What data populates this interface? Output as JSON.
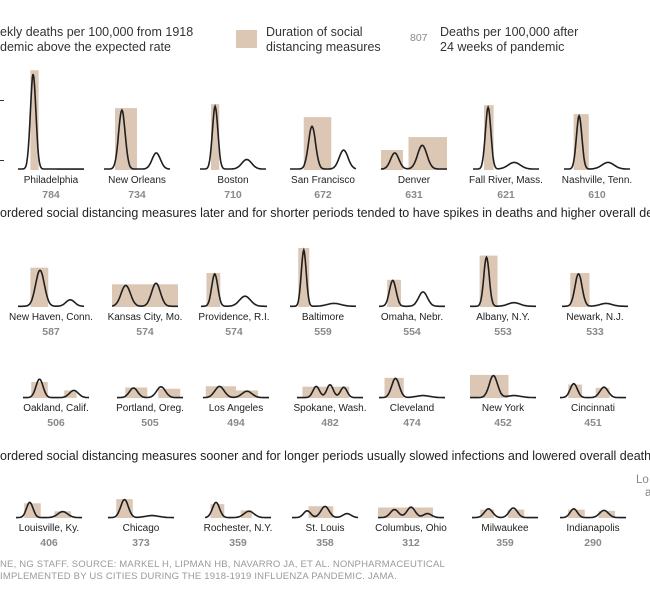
{
  "legend": {
    "deaths_line1": "ekly deaths per 100,000 from 1918",
    "deaths_line2": "demic above the expected rate",
    "duration_line1": "Duration of social",
    "duration_line2": "distancing measures",
    "sample_value": "807",
    "total_line1": "Deaths per 100,000 after",
    "total_line2": "24 weeks of pandemic",
    "colors": {
      "bar": "#dcc6b4",
      "line": "#1f1f1f"
    }
  },
  "headlines": {
    "later": "ordered social distancing measures later and for shorter periods tended to have spikes in deaths and higher overall dea",
    "sooner": "ordered social distancing measures sooner and for longer periods usually slowed infections and lowered overall death"
  },
  "lower_note": {
    "line1": "Lo",
    "line2": "a"
  },
  "source": {
    "line1": "NE, NG STAFF. SOURCE: MARKEL H, LIPMAN HB, NAVARRO JA, ET AL. NONPHARMACEUTICAL",
    "line2": "IMPLEMENTED BY US CITIES DURING THE 1918-1919 INFLUENZA PANDEMIC. JAMA."
  },
  "chart_data": {
    "type": "line",
    "description": "Small multiples: weekly excess deaths per 100,000 (line) over 24 weeks with duration of social distancing (shaded bar)",
    "cities": [
      {
        "name": "Philadelphia",
        "total": "784",
        "bar": [
          4.5,
          7.5
        ],
        "peak": 1.0,
        "peaks": [
          [
            5.5,
            1.0,
            1.0
          ]
        ]
      },
      {
        "name": "New Orleans",
        "total": "734",
        "bar": [
          4,
          12
        ],
        "peak": 0.62,
        "peaks": [
          [
            6.5,
            0.62,
            1.2
          ],
          [
            19,
            0.17,
            1.5
          ]
        ]
      },
      {
        "name": "Boston",
        "total": "710",
        "bar": [
          4,
          7
        ],
        "peak": 0.66,
        "peaks": [
          [
            5.5,
            0.66,
            1.0
          ],
          [
            17,
            0.1,
            1.8
          ]
        ]
      },
      {
        "name": "San Francisco",
        "total": "672",
        "bar": [
          5,
          15
        ],
        "peak": 0.53,
        "peaks": [
          [
            8,
            0.45,
            1.3
          ],
          [
            19.5,
            0.2,
            1.6
          ]
        ]
      },
      {
        "name": "Denver",
        "total": "631",
        "bar": [
          0,
          24
        ],
        "peak": 0.25,
        "peaks": [
          [
            5,
            0.17,
            1.5
          ],
          [
            15,
            0.25,
            1.7
          ]
        ],
        "bars": [
          [
            0,
            8,
            0.2
          ],
          [
            10,
            24,
            0.33
          ]
        ]
      },
      {
        "name": "Fall River, Mass.",
        "total": "621",
        "bar": [
          4,
          7.5
        ],
        "peak": 0.65,
        "peaks": [
          [
            5.5,
            0.65,
            1.0
          ],
          [
            15,
            0.07,
            2.2
          ]
        ]
      },
      {
        "name": "Nashville, Tenn.",
        "total": "610",
        "bar": [
          3.5,
          9
        ],
        "peak": 0.56,
        "peaks": [
          [
            5.5,
            0.56,
            1.0
          ],
          [
            16,
            0.07,
            2.2
          ]
        ]
      },
      {
        "name": "New Haven, Conn.",
        "total": "587",
        "bar": [
          4.5,
          11
        ],
        "peak": 0.52,
        "peaks": [
          [
            8,
            0.5,
            1.6
          ],
          [
            19,
            0.09,
            1.6
          ]
        ]
      },
      {
        "name": "Kansas City, Mo.",
        "total": "574",
        "bar": [
          0,
          24
        ],
        "peak": 0.32,
        "peaks": [
          [
            5,
            0.29,
            1.7
          ],
          [
            16,
            0.32,
            1.6
          ]
        ],
        "bars": [
          [
            0,
            24,
            0.3
          ]
        ]
      },
      {
        "name": "Providence, R.I.",
        "total": "574",
        "bar": [
          2,
          7
        ],
        "peak": 0.45,
        "peaks": [
          [
            5,
            0.45,
            1.1
          ],
          [
            16,
            0.14,
            2
          ]
        ]
      },
      {
        "name": "Baltimore",
        "total": "559",
        "bar": [
          3,
          7
        ],
        "peak": 0.78,
        "peaks": [
          [
            5,
            0.78,
            0.9
          ],
          [
            16,
            0.04,
            2.5
          ]
        ]
      },
      {
        "name": "Omaha, Nebr.",
        "total": "554",
        "bar": [
          3,
          8
        ],
        "peak": 0.36,
        "peaks": [
          [
            5,
            0.36,
            1.2
          ],
          [
            16,
            0.2,
            1.6
          ]
        ]
      },
      {
        "name": "Albany, N.Y.",
        "total": "553",
        "bar": [
          3.5,
          10
        ],
        "peak": 0.68,
        "peaks": [
          [
            6,
            0.68,
            1.0
          ],
          [
            16,
            0.05,
            2.2
          ]
        ]
      },
      {
        "name": "Newark, N.J.",
        "total": "533",
        "bar": [
          3,
          10
        ],
        "peak": 0.45,
        "peaks": [
          [
            6,
            0.45,
            1.3
          ],
          [
            16,
            0.04,
            2.2
          ]
        ]
      },
      {
        "name": "Oakland, Calif.",
        "total": "506",
        "bar": [
          3,
          9
        ],
        "peak": 0.46,
        "peaks": [
          [
            6,
            0.46,
            1.3
          ],
          [
            18.5,
            0.18,
            1.6
          ]
        ],
        "bars": [
          [
            3,
            9,
            0.38
          ],
          [
            15,
            19.5,
            0.18
          ]
        ]
      },
      {
        "name": "Portland, Oreg.",
        "total": "505",
        "bar": [
          0,
          24
        ],
        "peak": 0.27,
        "peaks": [
          [
            6,
            0.24,
            1.5
          ],
          [
            16,
            0.27,
            1.6
          ]
        ],
        "bars": [
          [
            3,
            11,
            0.25
          ],
          [
            15,
            23,
            0.22
          ]
        ]
      },
      {
        "name": "Los Angeles",
        "total": "494",
        "bar": [
          0,
          24
        ],
        "peak": 0.28,
        "peaks": [
          [
            6,
            0.28,
            1.7
          ],
          [
            16,
            0.16,
            1.8
          ]
        ],
        "bars": [
          [
            1,
            12,
            0.28
          ],
          [
            12,
            20,
            0.18
          ]
        ]
      },
      {
        "name": "Spokane, Wash.",
        "total": "482",
        "bar": [
          0,
          24
        ],
        "peak": 0.32,
        "peaks": [
          [
            7,
            0.28,
            1.2
          ],
          [
            12,
            0.32,
            1.2
          ],
          [
            17,
            0.26,
            1.2
          ]
        ],
        "bars": [
          [
            2,
            19,
            0.27
          ]
        ]
      },
      {
        "name": "Cleveland",
        "total": "474",
        "bar": [
          2,
          9
        ],
        "peak": 0.48,
        "peaks": [
          [
            6,
            0.48,
            1.4
          ],
          [
            16,
            0.05,
            2.5
          ]
        ]
      },
      {
        "name": "New York",
        "total": "452",
        "bar": [
          0,
          14
        ],
        "peak": 0.55,
        "peaks": [
          [
            8.5,
            0.55,
            1.5
          ],
          [
            16,
            0.05,
            2.5
          ]
        ]
      },
      {
        "name": "Cincinnati",
        "total": "451",
        "bar": [
          0,
          24
        ],
        "peak": 0.35,
        "peaks": [
          [
            5,
            0.35,
            1.3
          ],
          [
            16,
            0.26,
            1.5
          ]
        ],
        "bars": [
          [
            3,
            8,
            0.32
          ],
          [
            13,
            18,
            0.24
          ]
        ]
      },
      {
        "name": "Louisville, Ky.",
        "total": "406",
        "bar": [
          0,
          24
        ],
        "peak": 0.38,
        "peaks": [
          [
            5,
            0.38,
            1.2
          ],
          [
            17,
            0.15,
            1.8
          ]
        ],
        "bars": [
          [
            3,
            9,
            0.35
          ],
          [
            14,
            20,
            0.16
          ]
        ]
      },
      {
        "name": "Chicago",
        "total": "373",
        "bar": [
          3,
          9
        ],
        "peak": 0.45,
        "peaks": [
          [
            6,
            0.45,
            1.4
          ],
          [
            16,
            0.05,
            2.5
          ]
        ]
      },
      {
        "name": "Rochester, N.Y.",
        "total": "359",
        "bar": [
          0,
          24
        ],
        "peak": 0.38,
        "peaks": [
          [
            4,
            0.38,
            1.3
          ],
          [
            16,
            0.16,
            1.8
          ]
        ],
        "bars": [
          [
            2,
            7,
            0.33
          ],
          [
            13,
            17,
            0.18
          ]
        ]
      },
      {
        "name": "St. Louis",
        "total": "358",
        "bar": [
          6,
          15
        ],
        "peak": 0.28,
        "peaks": [
          [
            5.5,
            0.17,
            1.3
          ],
          [
            12,
            0.28,
            1.5
          ],
          [
            20,
            0.1,
            1.5
          ]
        ]
      },
      {
        "name": "Columbus, Ohio",
        "total": "312",
        "bar": [
          0,
          20
        ],
        "peak": 0.26,
        "peaks": [
          [
            6,
            0.2,
            1.5
          ],
          [
            12,
            0.26,
            1.5
          ],
          [
            18,
            0.1,
            1.5
          ]
        ],
        "bars": [
          [
            0,
            20,
            0.25
          ]
        ]
      },
      {
        "name": "Milwaukee",
        "total": "359",
        "bar": [
          0,
          24
        ],
        "peak": 0.24,
        "peaks": [
          [
            6,
            0.22,
            1.5
          ],
          [
            15,
            0.24,
            1.5
          ]
        ],
        "bars": [
          [
            3,
            8,
            0.2
          ],
          [
            13,
            19,
            0.2
          ]
        ]
      },
      {
        "name": "Indianapolis",
        "total": "290",
        "bar": [
          0,
          24
        ],
        "peak": 0.22,
        "peaks": [
          [
            5,
            0.22,
            1.3
          ],
          [
            16,
            0.18,
            1.6
          ]
        ],
        "bars": [
          [
            3,
            9,
            0.2
          ],
          [
            14,
            20,
            0.17
          ]
        ]
      }
    ],
    "x_range_weeks": [
      0,
      24
    ],
    "y_range_normalized": [
      0,
      1
    ]
  }
}
